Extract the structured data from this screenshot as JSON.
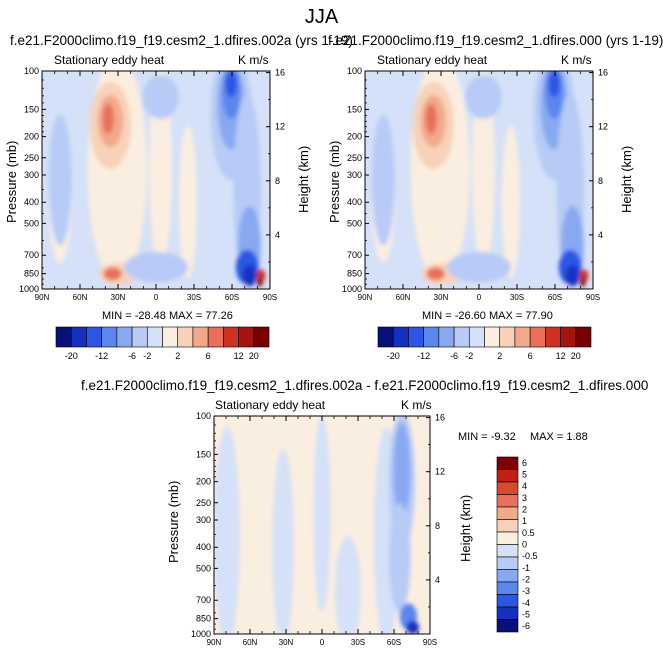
{
  "page_title": "JJA",
  "colors": {
    "palette_20": [
      "#08107a",
      "#1330c0",
      "#2b56e6",
      "#5b86ee",
      "#88a9f1",
      "#b7cbf6",
      "#d5e1f8",
      "#faeee0",
      "#f8d2b8",
      "#f2a98a",
      "#e8705a",
      "#cf3220",
      "#a61410",
      "#770000"
    ],
    "palette_diff": [
      "#08107a",
      "#1330c0",
      "#2b56e6",
      "#5b86ee",
      "#88a9f1",
      "#b7cbf6",
      "#d5e1f8",
      "#faeee0",
      "#f8d2b8",
      "#f2a98a",
      "#e8705a",
      "#d84a2e",
      "#c22112",
      "#7d0000"
    ]
  },
  "panels": [
    {
      "title": "f.e21.F2000climo.f19_f19.cesm2_1.dfires.002a (yrs 1-19)",
      "left_label": "Stationary eddy heat",
      "right_label": "K m/s",
      "minmax": "MIN = -28.48   MAX = 77.26"
    },
    {
      "title": "f.e21.F2000climo.f19_f19.cesm2_1.dfires.000 (yrs 1-19)",
      "left_label": "Stationary eddy heat",
      "right_label": "K m/s",
      "minmax": "MIN = -26.60   MAX = 77.90"
    },
    {
      "title": "f.e21.F2000climo.f19_f19.cesm2_1.dfires.002a - f.e21.F2000climo.f19_f19.cesm2_1.dfires.000",
      "left_label": "Stationary eddy heat",
      "right_label": "K m/s",
      "minmax_min": "MIN = -9.32",
      "minmax_max": "MAX =  1.88"
    }
  ],
  "chart_data": [
    {
      "type": "heatmap",
      "title": "f.e21.F2000climo.f19_f19.cesm2_1.dfires.002a (yrs 1-19)",
      "subtitle": "Stationary eddy heat",
      "units": "K m/s",
      "xlabel": "",
      "ylabel": "Pressure (mb)",
      "y2label": "Height (km)",
      "x_ticks": [
        "90N",
        "60N",
        "30N",
        "0",
        "30S",
        "60S",
        "90S"
      ],
      "y_ticks": [
        "100",
        "150",
        "200",
        "250",
        "300",
        "400",
        "500",
        "700",
        "850",
        "1000"
      ],
      "y2_ticks": [
        "4",
        "8",
        "12",
        "16"
      ],
      "y_scale": "log",
      "levels": [
        -20,
        -16,
        -12,
        -8,
        -6,
        -4,
        -2,
        -1,
        1,
        2,
        4,
        6,
        8,
        12,
        16,
        20
      ],
      "level_labels": [
        "-20",
        "-12",
        "-6",
        "-2",
        "2",
        "6",
        "12",
        "20"
      ],
      "min": -28.48,
      "max": 77.26
    },
    {
      "type": "heatmap",
      "title": "f.e21.F2000climo.f19_f19.cesm2_1.dfires.000 (yrs 1-19)",
      "subtitle": "Stationary eddy heat",
      "units": "K m/s",
      "xlabel": "",
      "ylabel": "Pressure (mb)",
      "y2label": "Height (km)",
      "x_ticks": [
        "90N",
        "60N",
        "30N",
        "0",
        "30S",
        "60S",
        "90S"
      ],
      "y_ticks": [
        "100",
        "150",
        "200",
        "250",
        "300",
        "400",
        "500",
        "700",
        "850",
        "1000"
      ],
      "y2_ticks": [
        "4",
        "8",
        "12",
        "16"
      ],
      "y_scale": "log",
      "levels": [
        -20,
        -16,
        -12,
        -8,
        -6,
        -4,
        -2,
        -1,
        1,
        2,
        4,
        6,
        8,
        12,
        16,
        20
      ],
      "level_labels": [
        "-20",
        "-12",
        "-6",
        "-2",
        "2",
        "6",
        "12",
        "20"
      ],
      "min": -26.6,
      "max": 77.9
    },
    {
      "type": "heatmap",
      "title": "f.e21.F2000climo.f19_f19.cesm2_1.dfires.002a - f.e21.F2000climo.f19_f19.cesm2_1.dfires.000",
      "subtitle": "Stationary eddy heat",
      "units": "K m/s",
      "xlabel": "",
      "ylabel": "Pressure (mb)",
      "y2label": "Height (km)",
      "x_ticks": [
        "90N",
        "60N",
        "30N",
        "0",
        "30S",
        "60S",
        "90S"
      ],
      "y_ticks": [
        "100",
        "150",
        "200",
        "250",
        "300",
        "400",
        "500",
        "700",
        "850",
        "1000"
      ],
      "y2_ticks": [
        "4",
        "8",
        "12",
        "16"
      ],
      "y_scale": "log",
      "level_labels": [
        "6",
        "5",
        "4",
        "3",
        "2",
        "1",
        "0.5",
        "0",
        "-0.5",
        "-1",
        "-2",
        "-3",
        "-4",
        "-5",
        "-6"
      ],
      "min": -9.32,
      "max": 1.88
    }
  ]
}
